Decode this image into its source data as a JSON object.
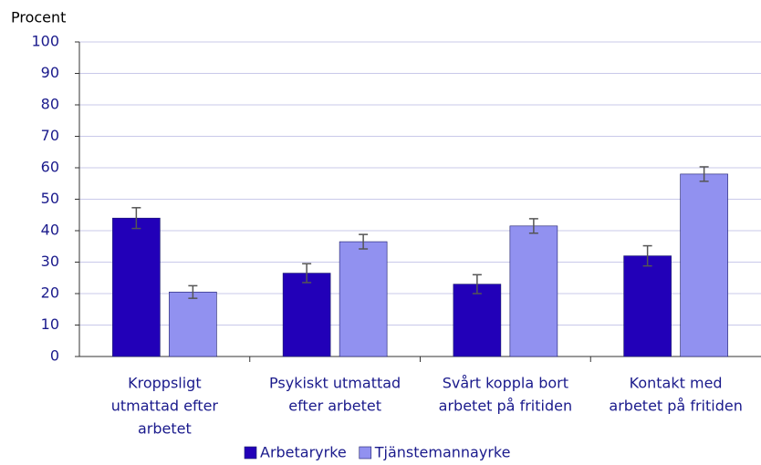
{
  "chart_data": {
    "type": "bar",
    "y_label": "Procent",
    "categories": [
      [
        "Kroppsligt",
        "utmattad efter",
        "arbetet"
      ],
      [
        "Psykiskt utmattad",
        "efter arbetet"
      ],
      [
        "Svårt koppla bort",
        "arbetet på fritiden"
      ],
      [
        "Kontakt med",
        "arbetet på fritiden"
      ]
    ],
    "series": [
      {
        "name": "Arbetaryrke",
        "color": "#2200b8",
        "values": [
          44,
          26.5,
          23,
          32
        ],
        "errors": [
          3.3,
          3,
          3,
          3.2
        ]
      },
      {
        "name": "Tjänstemannayrke",
        "color": "#9191f0",
        "values": [
          20.5,
          36.5,
          41.5,
          58
        ],
        "errors": [
          2,
          2.3,
          2.3,
          2.3
        ]
      }
    ],
    "ylim": [
      0,
      100
    ],
    "yticks": [
      0,
      10,
      20,
      30,
      40,
      50,
      60,
      70,
      80,
      90,
      100
    ],
    "grid": true,
    "legend": "bottom"
  }
}
